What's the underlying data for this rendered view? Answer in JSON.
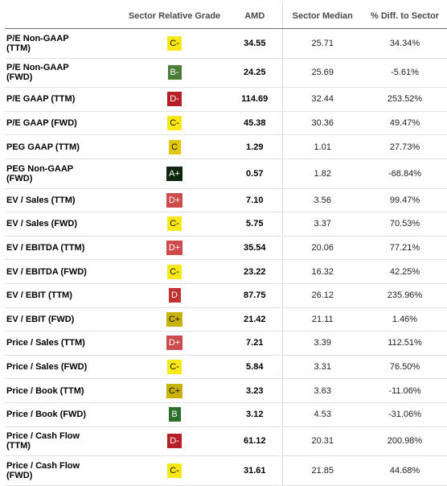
{
  "table": {
    "headers": {
      "metric": "",
      "grade": "Sector Relative Grade",
      "company": "AMD",
      "median": "Sector Median",
      "diff": "% Diff. to Sector"
    },
    "rows": [
      {
        "metric_lines": [
          "P/E Non-GAAP",
          "(TTM)"
        ],
        "grade": "C-",
        "grade_color": "#f7e81a",
        "amd": "34.55",
        "median": "25.71",
        "diff": "34.34%"
      },
      {
        "metric_lines": [
          "P/E Non-GAAP",
          "(FWD)"
        ],
        "grade": "B-",
        "grade_color": "#4a7d35",
        "amd": "24.25",
        "median": "25.69",
        "diff": "-5.61%"
      },
      {
        "metric_lines": [
          "P/E GAAP (TTM)"
        ],
        "grade": "D-",
        "grade_color": "#b52026",
        "amd": "114.69",
        "median": "32.44",
        "diff": "253.52%"
      },
      {
        "metric_lines": [
          "P/E GAAP (FWD)"
        ],
        "grade": "C-",
        "grade_color": "#f7e81a",
        "amd": "45.38",
        "median": "30.36",
        "diff": "49.47%"
      },
      {
        "metric_lines": [
          "PEG GAAP (TTM)"
        ],
        "grade": "C",
        "grade_color": "#e2c70c",
        "amd": "1.29",
        "median": "1.01",
        "diff": "27.73%"
      },
      {
        "metric_lines": [
          "PEG Non-GAAP",
          "(FWD)"
        ],
        "grade": "A+",
        "grade_color": "#0e2810",
        "amd": "0.57",
        "median": "1.82",
        "diff": "-68.84%"
      },
      {
        "metric_lines": [
          "EV / Sales (TTM)"
        ],
        "grade": "D+",
        "grade_color": "#cc4c4c",
        "amd": "7.10",
        "median": "3.56",
        "diff": "99.47%"
      },
      {
        "metric_lines": [
          "EV / Sales (FWD)"
        ],
        "grade": "C-",
        "grade_color": "#f7e81a",
        "amd": "5.75",
        "median": "3.37",
        "diff": "70.53%"
      },
      {
        "metric_lines": [
          "EV / EBITDA (TTM)"
        ],
        "grade": "D+",
        "grade_color": "#cc4c4c",
        "amd": "35.54",
        "median": "20.06",
        "diff": "77.21%"
      },
      {
        "metric_lines": [
          "EV / EBITDA (FWD)"
        ],
        "grade": "C-",
        "grade_color": "#f7e81a",
        "amd": "23.22",
        "median": "16.32",
        "diff": "42.25%"
      },
      {
        "metric_lines": [
          "EV / EBIT (TTM)"
        ],
        "grade": "D",
        "grade_color": "#c0312f",
        "amd": "87.75",
        "median": "26.12",
        "diff": "235.96%"
      },
      {
        "metric_lines": [
          "EV / EBIT (FWD)"
        ],
        "grade": "C+",
        "grade_color": "#c9b30b",
        "amd": "21.42",
        "median": "21.11",
        "diff": "1.46%"
      },
      {
        "metric_lines": [
          "Price / Sales (TTM)"
        ],
        "grade": "D+",
        "grade_color": "#cc4c4c",
        "amd": "7.21",
        "median": "3.39",
        "diff": "112.51%"
      },
      {
        "metric_lines": [
          "Price / Sales (FWD)"
        ],
        "grade": "C-",
        "grade_color": "#f7e81a",
        "amd": "5.84",
        "median": "3.31",
        "diff": "76.50%"
      },
      {
        "metric_lines": [
          "Price / Book (TTM)"
        ],
        "grade": "C+",
        "grade_color": "#c9b30b",
        "amd": "3.23",
        "median": "3.63",
        "diff": "-11.06%"
      },
      {
        "metric_lines": [
          "Price / Book (FWD)"
        ],
        "grade": "B",
        "grade_color": "#2e6e2c",
        "amd": "3.12",
        "median": "4.53",
        "diff": "-31.06%"
      },
      {
        "metric_lines": [
          "Price / Cash Flow",
          "(TTM)"
        ],
        "grade": "D-",
        "grade_color": "#b52026",
        "amd": "61.12",
        "median": "20.31",
        "diff": "200.98%"
      },
      {
        "metric_lines": [
          "Price / Cash Flow",
          "(FWD)"
        ],
        "grade": "C-",
        "grade_color": "#f7e81a",
        "amd": "31.61",
        "median": "21.85",
        "diff": "44.68%"
      }
    ]
  }
}
